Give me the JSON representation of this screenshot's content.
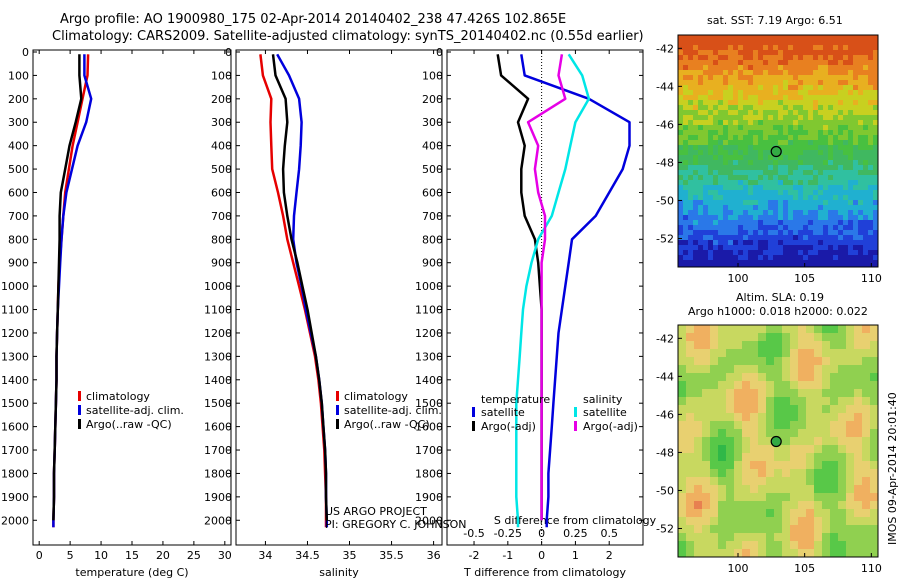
{
  "header": {
    "line1": "Argo profile: AO 1900980_175 02-Apr-2014 20140402_238 47.426S 102.865E",
    "line2": "Climatology: CARS2009. Satellite-adjusted climatology: synTS_20140402.nc (0.55d earlier)"
  },
  "map_sst": {
    "title": "sat. SST: 7.19 Argo: 6.51"
  },
  "map_sla": {
    "title1": "Altim. SLA: 0.19",
    "title2": "Argo h1000: 0.018 h2000: 0.022"
  },
  "credit": {
    "line1": "US ARGO PROJECT",
    "line2": "PI: GREGORY C. JOHNSON"
  },
  "stamp": "IMOS 09-Apr-2014 20:01:40",
  "chart_data": [
    {
      "type": "line",
      "name": "temperature",
      "xlabel": "temperature (deg C)",
      "ylabel": "",
      "xlim": [
        -1,
        31
      ],
      "ylim": [
        2080,
        0
      ],
      "xticks": [
        0,
        5,
        10,
        15,
        20,
        25,
        30
      ],
      "yticks": [
        0,
        100,
        200,
        300,
        400,
        500,
        600,
        700,
        800,
        900,
        1000,
        1100,
        1200,
        1300,
        1400,
        1500,
        1600,
        1700,
        1800,
        1900,
        2000
      ],
      "legend": [
        "climatology",
        "satellite-adj. clim.",
        "Argo(..raw -QC)"
      ],
      "legend_colors": [
        "#e60000",
        "#0000dd",
        "#000000"
      ],
      "series": [
        {
          "name": "climatology",
          "color": "#e60000",
          "x": [
            7.9,
            7.8,
            7.0,
            6.2,
            5.4,
            4.8,
            4.2,
            3.9,
            3.6,
            3.3,
            3.1,
            3.0,
            2.9,
            2.8,
            2.8,
            2.7,
            2.6,
            2.5,
            2.4,
            2.4,
            2.3,
            2.3
          ],
          "y": [
            10,
            100,
            200,
            300,
            400,
            500,
            600,
            700,
            800,
            900,
            1000,
            1100,
            1200,
            1300,
            1400,
            1500,
            1600,
            1700,
            1800,
            1900,
            2000,
            2030
          ]
        },
        {
          "name": "satellite-adj. clim.",
          "color": "#0000dd",
          "x": [
            7.3,
            7.3,
            8.4,
            7.6,
            6.2,
            5.3,
            4.4,
            3.9,
            3.6,
            3.4,
            3.2,
            3.0,
            2.9,
            2.8,
            2.8,
            2.7,
            2.6,
            2.5,
            2.4,
            2.4,
            2.3,
            2.3
          ],
          "y": [
            10,
            100,
            200,
            300,
            400,
            500,
            600,
            700,
            800,
            900,
            1000,
            1100,
            1200,
            1300,
            1400,
            1500,
            1600,
            1700,
            1800,
            1900,
            2000,
            2030
          ]
        },
        {
          "name": "Argo(..raw -QC)",
          "color": "#000000",
          "x": [
            6.5,
            6.5,
            6.8,
            5.9,
            4.9,
            4.2,
            3.5,
            3.3,
            3.3,
            3.2,
            3.1,
            3.0,
            2.9,
            2.8,
            2.8,
            2.7,
            2.6,
            2.5,
            2.4,
            2.4,
            2.3
          ],
          "y": [
            10,
            100,
            200,
            300,
            400,
            500,
            600,
            700,
            800,
            900,
            1000,
            1100,
            1200,
            1300,
            1400,
            1500,
            1600,
            1700,
            1800,
            1900,
            2000
          ]
        }
      ]
    },
    {
      "type": "line",
      "name": "salinity",
      "xlabel": "salinity",
      "ylabel": "",
      "xlim": [
        33.65,
        36.1
      ],
      "ylim": [
        2080,
        0
      ],
      "xticks": [
        34,
        34.5,
        35,
        35.5,
        36
      ],
      "legend": [
        "climatology",
        "satellite-adj. clim.",
        "Argo(..raw -QC)"
      ],
      "legend_colors": [
        "#e60000",
        "#0000dd",
        "#000000"
      ],
      "series": [
        {
          "name": "climatology",
          "color": "#e60000",
          "x": [
            33.94,
            33.97,
            34.07,
            34.06,
            34.07,
            34.08,
            34.15,
            34.21,
            34.26,
            34.33,
            34.4,
            34.47,
            34.53,
            34.59,
            34.63,
            34.66,
            34.68,
            34.7,
            34.71,
            34.72,
            34.72,
            34.72
          ],
          "y": [
            10,
            100,
            200,
            300,
            400,
            500,
            600,
            700,
            800,
            900,
            1000,
            1100,
            1200,
            1300,
            1400,
            1500,
            1600,
            1700,
            1800,
            1900,
            2000,
            2030
          ]
        },
        {
          "name": "satellite-adj. clim.",
          "color": "#0000dd",
          "x": [
            34.14,
            34.28,
            34.4,
            34.43,
            34.42,
            34.4,
            34.37,
            34.34,
            34.33,
            34.37,
            34.43,
            34.48,
            34.54,
            34.6,
            34.64,
            34.67,
            34.69,
            34.71,
            34.72,
            34.72,
            34.73,
            34.73
          ],
          "y": [
            10,
            100,
            200,
            300,
            400,
            500,
            600,
            700,
            800,
            900,
            1000,
            1100,
            1200,
            1300,
            1400,
            1500,
            1600,
            1700,
            1800,
            1900,
            2000,
            2030
          ]
        },
        {
          "name": "Argo(..raw -QC)",
          "color": "#000000",
          "x": [
            34.09,
            34.12,
            34.24,
            34.26,
            34.23,
            34.21,
            34.22,
            34.26,
            34.31,
            34.38,
            34.44,
            34.5,
            34.55,
            34.6,
            34.64,
            34.67,
            34.69,
            34.71,
            34.72,
            34.72,
            34.73
          ],
          "y": [
            10,
            100,
            200,
            300,
            400,
            500,
            600,
            700,
            800,
            900,
            1000,
            1100,
            1200,
            1300,
            1400,
            1500,
            1600,
            1700,
            1800,
            1900,
            2000
          ]
        }
      ]
    },
    {
      "type": "line",
      "name": "differences",
      "xlabel": "T difference from climatology",
      "xlabel_top": "S difference from climatology",
      "xlim": [
        -2.8,
        3.0
      ],
      "ylim": [
        2080,
        0
      ],
      "xticks": [
        -2,
        -1,
        0,
        1,
        2
      ],
      "xticks_s": [
        -0.5,
        -0.25,
        0,
        0.25,
        0.5
      ],
      "legend_groups": [
        "temperature",
        "salinity"
      ],
      "legend": [
        "satellite",
        "Argo(-adj)",
        "satellite",
        "Argo(-adj)"
      ],
      "legend_colors": [
        "#0000dd",
        "#000000",
        "#00e6e6",
        "#e600e6"
      ],
      "series": [
        {
          "name": "temperature satellite",
          "color": "#0000dd",
          "x": [
            -0.6,
            -0.5,
            1.4,
            2.6,
            2.6,
            2.4,
            2.0,
            1.6,
            0.9,
            0.8,
            0.7,
            0.6,
            0.5,
            0.45,
            0.4,
            0.35,
            0.3,
            0.25,
            0.2,
            0.2,
            0.15,
            0.15
          ],
          "y": [
            10,
            100,
            200,
            300,
            400,
            500,
            600,
            700,
            800,
            900,
            1000,
            1100,
            1200,
            1300,
            1400,
            1500,
            1600,
            1700,
            1800,
            1900,
            2000,
            2030
          ]
        },
        {
          "name": "temperature Argo(-adj)",
          "color": "#000000",
          "x": [
            -1.3,
            -1.2,
            -0.4,
            -0.7,
            -0.5,
            -0.6,
            -0.6,
            -0.5,
            -0.2,
            -0.1,
            -0.05,
            0.0,
            0.0,
            0.0,
            0.0,
            0.0,
            0.0,
            0.0,
            0.0,
            0.0,
            0.0
          ],
          "y": [
            10,
            100,
            200,
            300,
            400,
            500,
            600,
            700,
            800,
            900,
            1000,
            1100,
            1200,
            1300,
            1400,
            1500,
            1600,
            1700,
            1800,
            1900,
            2000
          ]
        },
        {
          "name": "salinity satellite",
          "color": "#00e6e6",
          "x": [
            0.8,
            1.2,
            1.4,
            1.0,
            0.85,
            0.7,
            0.5,
            0.3,
            -0.1,
            -0.3,
            -0.45,
            -0.55,
            -0.6,
            -0.65,
            -0.7,
            -0.75,
            -0.75,
            -0.75,
            -0.75,
            -0.75,
            -0.7,
            -0.7
          ],
          "y": [
            10,
            100,
            200,
            300,
            400,
            500,
            600,
            700,
            800,
            900,
            1000,
            1100,
            1200,
            1300,
            1400,
            1500,
            1600,
            1700,
            1800,
            1900,
            2000,
            2030
          ]
        },
        {
          "name": "salinity Argo(-adj)",
          "color": "#e600e6",
          "x": [
            0.6,
            0.5,
            0.7,
            -0.4,
            -0.1,
            -0.2,
            -0.1,
            0.1,
            0.1,
            0.0,
            0.0,
            0.0,
            0.0,
            0.0,
            0.0,
            0.0,
            0.0,
            0.0,
            0.0,
            0.0,
            0.0
          ],
          "y": [
            10,
            100,
            200,
            300,
            400,
            500,
            600,
            700,
            800,
            900,
            1000,
            1100,
            1200,
            1300,
            1400,
            1500,
            1600,
            1700,
            1800,
            1900,
            2000
          ]
        }
      ]
    },
    {
      "type": "heatmap",
      "name": "sst-map",
      "title": "sat. SST: 7.19 Argo: 6.51",
      "xlim": [
        95.5,
        110.5
      ],
      "ylim": [
        -53.5,
        -41.3
      ],
      "xticks": [
        100,
        105,
        110
      ],
      "yticks": [
        -42,
        -44,
        -46,
        -48,
        -50,
        -52
      ],
      "argo_marker": {
        "lon": 102.865,
        "lat": -47.426
      }
    },
    {
      "type": "heatmap",
      "name": "sla-map",
      "title": "Altim. SLA: 0.19",
      "xlim": [
        95.5,
        110.5
      ],
      "ylim": [
        -53.5,
        -41.3
      ],
      "xticks": [
        100,
        105,
        110
      ],
      "yticks": [
        -42,
        -44,
        -46,
        -48,
        -50,
        -52
      ],
      "argo_marker": {
        "lon": 102.865,
        "lat": -47.426
      }
    }
  ]
}
